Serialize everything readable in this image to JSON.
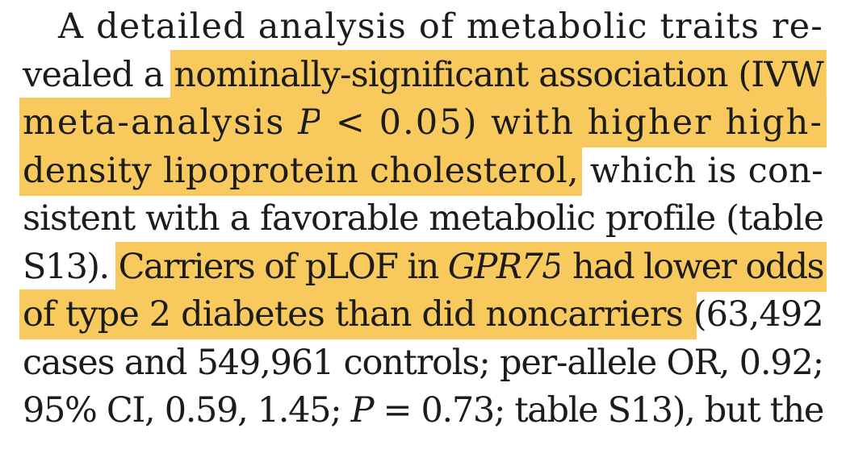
{
  "paragraph": {
    "lines": [
      [
        {
          "text": "A detailed analysis of metabolic traits re-",
          "highlight": false,
          "italic": false
        }
      ],
      [
        {
          "text": "vealed a ",
          "highlight": false,
          "italic": false
        },
        {
          "text": "nominally-significant association (IVW",
          "highlight": true,
          "italic": false
        }
      ],
      [
        {
          "text": "meta-analysis ",
          "highlight": true,
          "italic": false
        },
        {
          "text": "P",
          "highlight": true,
          "italic": true
        },
        {
          "text": " < 0.05) with higher high-",
          "highlight": true,
          "italic": false
        }
      ],
      [
        {
          "text": "density lipoprotein cholesterol,",
          "highlight": true,
          "italic": false
        },
        {
          "text": " which is con-",
          "highlight": false,
          "italic": false
        }
      ],
      [
        {
          "text": "sistent with a favorable metabolic profile (table",
          "highlight": false,
          "italic": false
        }
      ],
      [
        {
          "text": "S13). ",
          "highlight": false,
          "italic": false
        },
        {
          "text": "Carriers of pLOF in ",
          "highlight": true,
          "italic": false
        },
        {
          "text": "GPR75",
          "highlight": true,
          "italic": true
        },
        {
          "text": " had lower odds",
          "highlight": true,
          "italic": false
        }
      ],
      [
        {
          "text": "of type 2 diabetes than did noncarriers ",
          "highlight": true,
          "italic": false
        },
        {
          "text": "(63,492",
          "highlight": false,
          "italic": false
        }
      ],
      [
        {
          "text": "cases and 549,961 controls; per-allele OR, 0.92;",
          "highlight": false,
          "italic": false
        }
      ],
      [
        {
          "text": "95% CI, 0.59, 1.45; ",
          "highlight": false,
          "italic": false
        },
        {
          "text": "P",
          "highlight": false,
          "italic": true
        },
        {
          "text": " = 0.73; table S13), but the",
          "highlight": false,
          "italic": false
        }
      ]
    ]
  },
  "colors": {
    "text": "#1c1c1c",
    "highlight": "#f8c95c",
    "background": "#ffffff"
  }
}
